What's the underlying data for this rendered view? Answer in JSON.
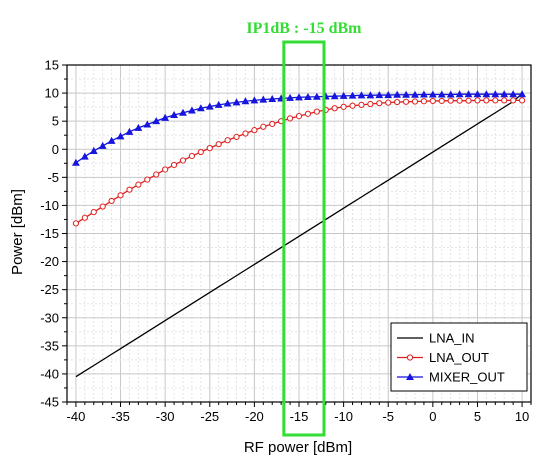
{
  "chart_data": {
    "type": "line",
    "title": "",
    "xlabel": "RF power [dBm]",
    "ylabel": "Power [dBm]",
    "xlim": [
      -41,
      11
    ],
    "ylim": [
      -45,
      15
    ],
    "xticks": [
      -40,
      -35,
      -30,
      -25,
      -20,
      -15,
      -10,
      -5,
      0,
      5,
      10
    ],
    "yticks": [
      -45,
      -40,
      -35,
      -30,
      -25,
      -20,
      -15,
      -10,
      -5,
      0,
      5,
      10,
      15
    ],
    "grid": true,
    "legend_position": "bottom-right",
    "annotation": {
      "text": "IP1dB : -15 dBm",
      "x_range": [
        -16.7,
        -12.2
      ],
      "color": "#33dd33"
    },
    "x": [
      -40,
      -39,
      -38,
      -37,
      -36,
      -35,
      -34,
      -33,
      -32,
      -31,
      -30,
      -29,
      -28,
      -27,
      -26,
      -25,
      -24,
      -23,
      -22,
      -21,
      -20,
      -19,
      -18,
      -17,
      -16,
      -15,
      -14,
      -13,
      -12,
      -11,
      -10,
      -9,
      -8,
      -7,
      -6,
      -5,
      -4,
      -3,
      -2,
      -1,
      0,
      1,
      2,
      3,
      4,
      5,
      6,
      7,
      8,
      9,
      10
    ],
    "series": [
      {
        "name": "LNA_IN",
        "color": "#000000",
        "marker": "none",
        "values": [
          -40.5,
          -39.5,
          -38.5,
          -37.5,
          -36.5,
          -35.5,
          -34.5,
          -33.5,
          -32.5,
          -31.5,
          -30.5,
          -29.5,
          -28.5,
          -27.5,
          -26.5,
          -25.5,
          -24.5,
          -23.5,
          -22.5,
          -21.5,
          -20.5,
          -19.5,
          -18.5,
          -17.5,
          -16.5,
          -15.5,
          -14.5,
          -13.5,
          -12.5,
          -11.5,
          -10.5,
          -9.5,
          -8.5,
          -7.5,
          -6.5,
          -5.5,
          -4.5,
          -3.5,
          -2.5,
          -1.5,
          -0.5,
          0.5,
          1.5,
          2.5,
          3.5,
          4.5,
          5.5,
          6.5,
          7.5,
          8.5,
          9.9
        ]
      },
      {
        "name": "LNA_OUT",
        "color": "#e02020",
        "marker": "circle",
        "values": [
          -13.2,
          -12.2,
          -11.2,
          -10.2,
          -9.2,
          -8.2,
          -7.2,
          -6.3,
          -5.4,
          -4.5,
          -3.6,
          -2.8,
          -2.0,
          -1.2,
          -0.5,
          0.2,
          0.9,
          1.6,
          2.2,
          2.8,
          3.4,
          4.0,
          4.5,
          5.0,
          5.5,
          5.9,
          6.3,
          6.7,
          7.0,
          7.3,
          7.55,
          7.75,
          7.9,
          8.05,
          8.2,
          8.3,
          8.4,
          8.45,
          8.5,
          8.55,
          8.6,
          8.6,
          8.65,
          8.65,
          8.65,
          8.7,
          8.7,
          8.7,
          8.7,
          8.7,
          8.7
        ]
      },
      {
        "name": "MIXER_OUT",
        "color": "#1515dd",
        "marker": "triangle",
        "values": [
          -2.4,
          -1.3,
          -0.3,
          0.6,
          1.5,
          2.3,
          3.1,
          3.8,
          4.4,
          5.0,
          5.6,
          6.1,
          6.5,
          6.9,
          7.3,
          7.6,
          7.9,
          8.15,
          8.35,
          8.55,
          8.7,
          8.85,
          8.95,
          9.05,
          9.15,
          9.25,
          9.3,
          9.35,
          9.4,
          9.45,
          9.5,
          9.55,
          9.6,
          9.6,
          9.65,
          9.65,
          9.7,
          9.7,
          9.7,
          9.75,
          9.75,
          9.75,
          9.75,
          9.8,
          9.8,
          9.8,
          9.8,
          9.8,
          9.8,
          9.8,
          9.8
        ]
      }
    ]
  }
}
